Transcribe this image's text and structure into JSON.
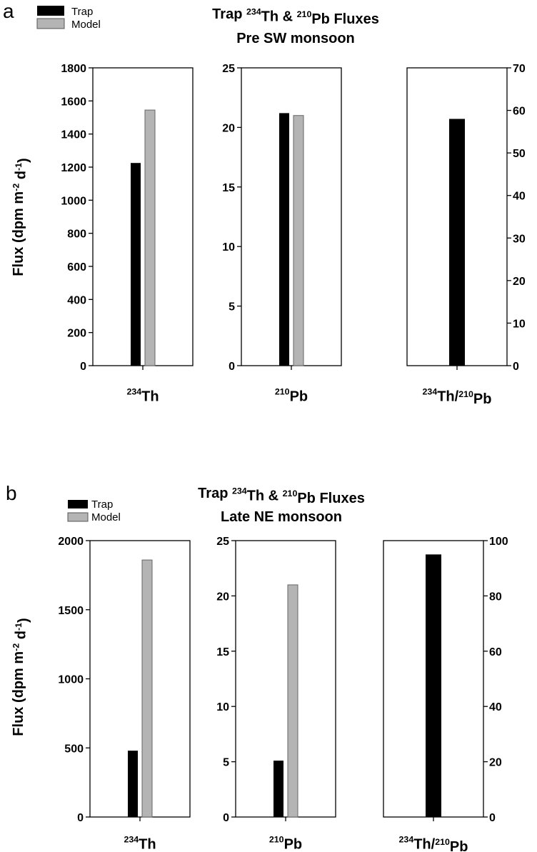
{
  "legend": {
    "trap_label": "Trap",
    "model_label": "Model",
    "trap_color": "#000000",
    "model_color": "#b4b4b4"
  },
  "ylabel": "Flux (dpm m-2 d-1)",
  "chart_data": [
    {
      "panel": "a",
      "type": "bar",
      "title": "Trap 234Th & 210Pb Fluxes",
      "subtitle": "Pre SW monsoon",
      "ylabel": "Flux (dpm m-2 d-1)",
      "series_names": [
        "Trap",
        "Model"
      ],
      "subplots": [
        {
          "xlabel": "234Th",
          "ylim": [
            0,
            1800
          ],
          "yticks": [
            0,
            200,
            400,
            600,
            800,
            1000,
            1200,
            1400,
            1600,
            1800
          ],
          "axis_side": "left",
          "trap": 1225,
          "model": 1545
        },
        {
          "xlabel": "210Pb",
          "ylim": [
            0,
            25
          ],
          "yticks": [
            0,
            5,
            10,
            15,
            20,
            25
          ],
          "axis_side": "left",
          "trap": 21.2,
          "model": 21.0
        },
        {
          "xlabel": "234Th/210Pb",
          "ylim": [
            0,
            70
          ],
          "yticks": [
            0,
            10,
            20,
            30,
            40,
            50,
            60,
            70
          ],
          "axis_side": "right",
          "trap": 58,
          "model": null
        }
      ]
    },
    {
      "panel": "b",
      "type": "bar",
      "title": "Trap 234Th & 210Pb Fluxes",
      "subtitle": "Late NE monsoon",
      "ylabel": "Flux (dpm m-2 d-1)",
      "series_names": [
        "Trap",
        "Model"
      ],
      "subplots": [
        {
          "xlabel": "234Th",
          "ylim": [
            0,
            2000
          ],
          "yticks": [
            0,
            500,
            1000,
            1500,
            2000
          ],
          "axis_side": "left",
          "trap": 480,
          "model": 1860
        },
        {
          "xlabel": "210Pb",
          "ylim": [
            0,
            25
          ],
          "yticks": [
            0,
            5,
            10,
            15,
            20,
            25
          ],
          "axis_side": "left",
          "trap": 5.1,
          "model": 21.0
        },
        {
          "xlabel": "234Th/210Pb",
          "ylim": [
            0,
            100
          ],
          "yticks": [
            0,
            20,
            40,
            60,
            80,
            100
          ],
          "axis_side": "right",
          "trap": 95,
          "model": null
        }
      ]
    }
  ]
}
